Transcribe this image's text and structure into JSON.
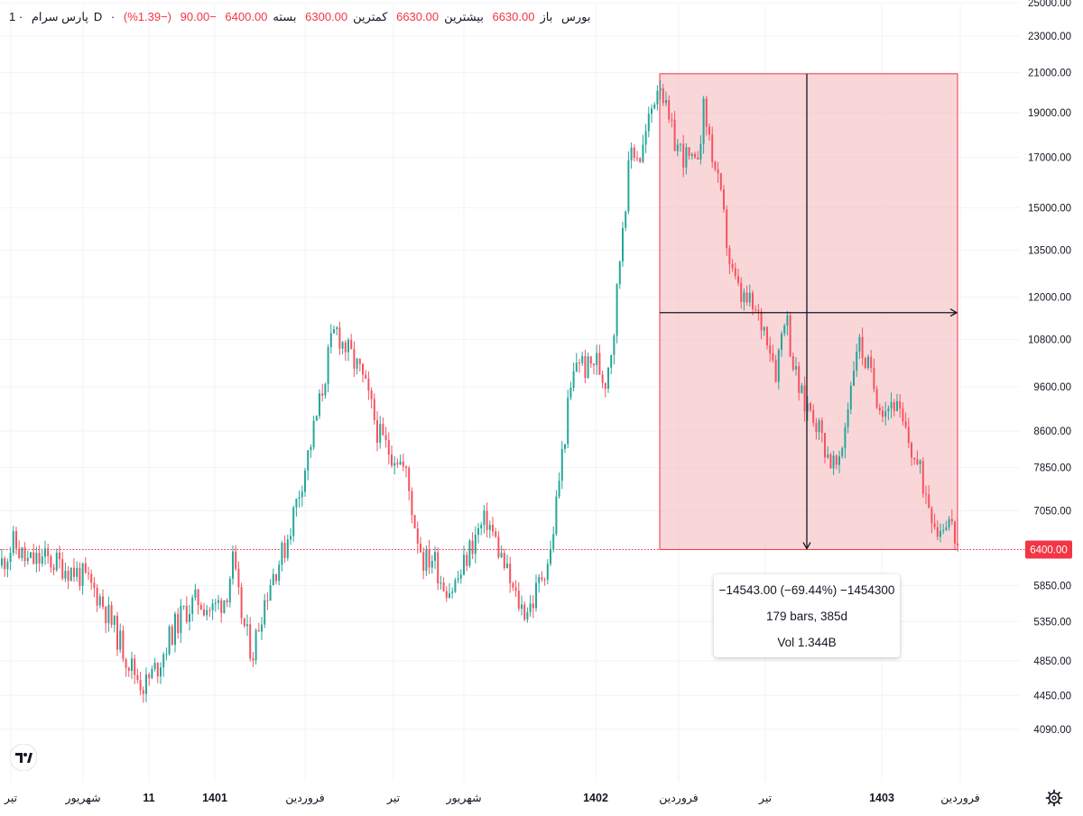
{
  "legend": {
    "symbol": "پارس سرام",
    "interval": "1D",
    "exchange": "بورس",
    "open_label": "باز",
    "open": "6630.00",
    "high_label": "بیشترین",
    "high": "6630.00",
    "low_label": "کمترین",
    "low": "6300.00",
    "close_label": "بسته",
    "close": "6400.00",
    "change": "−90.00",
    "change_pct": "(−1.39%)"
  },
  "measure": {
    "line1": "−14543.00 (−69.44%) −1454300",
    "line2": "179 bars, 385d",
    "line3": "Vol 1.344B",
    "from_price": 20943,
    "to_price": 6400
  },
  "chart_data": {
    "type": "candlestick",
    "title": "",
    "current_price": 6400,
    "current_price_label": "6400.00",
    "y_axis": {
      "scale": "log",
      "range": [
        3900,
        25000
      ],
      "ticks": [
        "25000.00",
        "23000.00",
        "21000.00",
        "19000.00",
        "17000.00",
        "15000.00",
        "13500.00",
        "12000.00",
        "10800.00",
        "9600.00",
        "8600.00",
        "7850.00",
        "7050.00",
        "6400.00",
        "5850.00",
        "5350.00",
        "4850.00",
        "4450.00",
        "4090.00"
      ]
    },
    "x_axis": {
      "labels": [
        "تیر",
        "شهریور",
        "11",
        "1401",
        "فروردین",
        "تیر",
        "شهریور",
        "1402",
        "فروردین",
        "تیر",
        "1403",
        "فروردین"
      ],
      "bold": [
        false,
        false,
        true,
        true,
        false,
        false,
        false,
        true,
        false,
        false,
        true,
        false
      ]
    },
    "series": [
      {
        "values": [
          [
            0,
            6150
          ],
          [
            15,
            6500
          ],
          [
            30,
            6200
          ],
          [
            50,
            6250
          ],
          [
            70,
            6150
          ],
          [
            90,
            6000
          ],
          [
            110,
            5700
          ],
          [
            125,
            5300
          ],
          [
            140,
            4900
          ],
          [
            150,
            4700
          ],
          [
            160,
            4550
          ],
          [
            175,
            4800
          ],
          [
            190,
            5200
          ],
          [
            205,
            5500
          ],
          [
            220,
            5650
          ],
          [
            235,
            5500
          ],
          [
            250,
            5700
          ],
          [
            258,
            6200
          ],
          [
            265,
            5600
          ],
          [
            272,
            5200
          ],
          [
            280,
            4950
          ],
          [
            290,
            5500
          ],
          [
            300,
            5950
          ],
          [
            315,
            6400
          ],
          [
            330,
            7300
          ],
          [
            345,
            8400
          ],
          [
            355,
            9300
          ],
          [
            365,
            10500
          ],
          [
            372,
            11100
          ],
          [
            380,
            10700
          ],
          [
            390,
            10300
          ],
          [
            400,
            9900
          ],
          [
            410,
            9200
          ],
          [
            420,
            8500
          ],
          [
            430,
            8200
          ],
          [
            440,
            8100
          ],
          [
            450,
            7700
          ],
          [
            460,
            6800
          ],
          [
            470,
            6200
          ],
          [
            480,
            6300
          ],
          [
            490,
            5900
          ],
          [
            500,
            5800
          ],
          [
            510,
            6000
          ],
          [
            520,
            6400
          ],
          [
            530,
            6700
          ],
          [
            540,
            6900
          ],
          [
            550,
            6500
          ],
          [
            560,
            6100
          ],
          [
            570,
            5700
          ],
          [
            580,
            5500
          ],
          [
            590,
            5600
          ],
          [
            600,
            6000
          ],
          [
            610,
            6350
          ],
          [
            620,
            7700
          ],
          [
            630,
            9200
          ],
          [
            640,
            10400
          ],
          [
            650,
            10000
          ],
          [
            660,
            10300
          ],
          [
            670,
            9700
          ],
          [
            680,
            11000
          ],
          [
            690,
            14500
          ],
          [
            700,
            17500
          ],
          [
            710,
            17000
          ],
          [
            720,
            18800
          ],
          [
            725,
            19800
          ],
          [
            731,
            20900
          ],
          [
            740,
            18500
          ],
          [
            750,
            17500
          ],
          [
            760,
            17000
          ],
          [
            770,
            16500
          ],
          [
            780,
            19200
          ],
          [
            790,
            17000
          ],
          [
            800,
            15000
          ],
          [
            810,
            12800
          ],
          [
            820,
            12000
          ],
          [
            830,
            11800
          ],
          [
            840,
            11400
          ],
          [
            850,
            11000
          ],
          [
            860,
            10000
          ],
          [
            870,
            11700
          ],
          [
            880,
            10000
          ],
          [
            890,
            9200
          ],
          [
            900,
            9100
          ],
          [
            910,
            8500
          ],
          [
            920,
            8000
          ],
          [
            930,
            7800
          ],
          [
            940,
            9300
          ],
          [
            950,
            10800
          ],
          [
            960,
            10200
          ],
          [
            970,
            9500
          ],
          [
            980,
            9100
          ],
          [
            990,
            9300
          ],
          [
            1000,
            8700
          ],
          [
            1010,
            8200
          ],
          [
            1020,
            7700
          ],
          [
            1030,
            7200
          ],
          [
            1040,
            6700
          ],
          [
            1050,
            7000
          ],
          [
            1062,
            6400
          ]
        ]
      }
    ],
    "up_color": "#26a69a",
    "down_color": "#f7525f",
    "measure_fill": "#f4b6b9",
    "measure_border": "#f23645",
    "price_line_color": "#f23645"
  }
}
